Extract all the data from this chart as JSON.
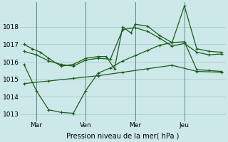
{
  "background_color": "#cce8e8",
  "grid_color": "#aacccc",
  "line_color": "#1a5c1a",
  "xlabel": "Pression niveau de la mer( hPa )",
  "ylim": [
    1012.6,
    1019.4
  ],
  "xlim": [
    -2,
    98
  ],
  "xtick_positions": [
    6,
    30,
    54,
    78
  ],
  "xtick_labels": [
    "Mar",
    "Ven",
    "Mer",
    "Jeu"
  ],
  "ytick_positions": [
    1013,
    1014,
    1015,
    1016,
    1017,
    1018
  ],
  "vline_positions": [
    6,
    30,
    54,
    78
  ],
  "series1_x": [
    0,
    4,
    8,
    12,
    18,
    24,
    30,
    36,
    40,
    44,
    48,
    52,
    54,
    60,
    66,
    72,
    78,
    84,
    90,
    96
  ],
  "series1_y": [
    1017.0,
    1016.75,
    1016.55,
    1016.2,
    1015.75,
    1015.85,
    1016.2,
    1016.3,
    1016.3,
    1015.6,
    1018.0,
    1017.65,
    1018.15,
    1018.05,
    1017.5,
    1017.1,
    1019.2,
    1016.75,
    1016.6,
    1016.55
  ],
  "series2_x": [
    0,
    6,
    12,
    18,
    24,
    30,
    36,
    42,
    48,
    54,
    60,
    66,
    72,
    78,
    84,
    90,
    96
  ],
  "series2_y": [
    1016.6,
    1016.4,
    1016.05,
    1015.85,
    1015.75,
    1016.1,
    1016.2,
    1016.15,
    1017.85,
    1017.95,
    1017.75,
    1017.35,
    1016.9,
    1017.05,
    1016.55,
    1016.4,
    1016.45
  ],
  "series3_x": [
    0,
    6,
    12,
    18,
    24,
    30,
    36,
    42,
    48,
    54,
    60,
    66,
    72,
    78,
    84,
    90,
    96
  ],
  "series3_y": [
    1015.85,
    1014.35,
    1013.25,
    1013.1,
    1013.05,
    1014.35,
    1015.35,
    1015.65,
    1016.05,
    1016.35,
    1016.65,
    1016.95,
    1017.1,
    1017.15,
    1015.55,
    1015.5,
    1015.45
  ],
  "series4_x": [
    0,
    12,
    24,
    36,
    48,
    60,
    72,
    84,
    96
  ],
  "series4_y": [
    1014.75,
    1014.9,
    1015.05,
    1015.2,
    1015.4,
    1015.6,
    1015.8,
    1015.45,
    1015.4
  ]
}
